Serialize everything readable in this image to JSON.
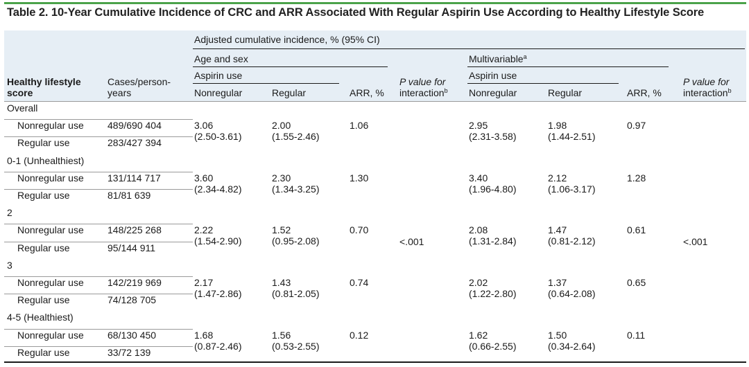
{
  "title": "Table 2. 10-Year Cumulative Incidence of CRC and ARR Associated With Regular Aspirin Use According to Healthy Lifestyle Score",
  "header": {
    "group": "Adjusted cumulative incidence, % (95% CI)",
    "age_sex": "Age and sex",
    "multivariable": "Multivariable",
    "multivariable_sup": "a",
    "aspirin_use": "Aspirin use",
    "healthy_lifestyle_1": "Healthy lifestyle",
    "healthy_lifestyle_2": "score",
    "cases_1": "Cases/person-",
    "cases_2": "years",
    "nonregular": "Nonregular",
    "regular": "Regular",
    "arr": "ARR, %",
    "p_value_1": "P value for",
    "p_value_2": "interaction",
    "p_value_sup": "b"
  },
  "groups": [
    {
      "label": "Overall",
      "rows": [
        {
          "label": "Nonregular use",
          "cases": "489/690 404"
        },
        {
          "label": "Regular use",
          "cases": "283/427 394"
        }
      ],
      "age_sex": {
        "nonreg": "3.06",
        "nonreg_ci": "(2.50-3.61)",
        "reg": "2.00",
        "reg_ci": "(1.55-2.46)",
        "arr": "1.06"
      },
      "multi": {
        "nonreg": "2.95",
        "nonreg_ci": "(2.31-3.58)",
        "reg": "1.98",
        "reg_ci": "(1.44-2.51)",
        "arr": "0.97"
      }
    },
    {
      "label": "0-1 (Unhealthiest)",
      "rows": [
        {
          "label": "Nonregular use",
          "cases": "131/114 717"
        },
        {
          "label": "Regular use",
          "cases": "81/81 639"
        }
      ],
      "age_sex": {
        "nonreg": "3.60",
        "nonreg_ci": "(2.34-4.82)",
        "reg": "2.30",
        "reg_ci": "(1.34-3.25)",
        "arr": "1.30"
      },
      "multi": {
        "nonreg": "3.40",
        "nonreg_ci": "(1.96-4.80)",
        "reg": "2.12",
        "reg_ci": "(1.06-3.17)",
        "arr": "1.28"
      }
    },
    {
      "label": "2",
      "rows": [
        {
          "label": "Nonregular use",
          "cases": "148/225 268"
        },
        {
          "label": "Regular use",
          "cases": "95/144 911"
        }
      ],
      "age_sex": {
        "nonreg": "2.22",
        "nonreg_ci": "(1.54-2.90)",
        "reg": "1.52",
        "reg_ci": "(0.95-2.08)",
        "arr": "0.70"
      },
      "multi": {
        "nonreg": "2.08",
        "nonreg_ci": "(1.31-2.84)",
        "reg": "1.47",
        "reg_ci": "(0.81-2.12)",
        "arr": "0.61"
      }
    },
    {
      "label": "3",
      "rows": [
        {
          "label": "Nonregular use",
          "cases": "142/219 969"
        },
        {
          "label": "Regular use",
          "cases": "74/128 705"
        }
      ],
      "age_sex": {
        "nonreg": "2.17",
        "nonreg_ci": "(1.47-2.86)",
        "reg": "1.43",
        "reg_ci": "(0.81-2.05)",
        "arr": "0.74"
      },
      "multi": {
        "nonreg": "2.02",
        "nonreg_ci": "(1.22-2.80)",
        "reg": "1.37",
        "reg_ci": "(0.64-2.08)",
        "arr": "0.65"
      }
    },
    {
      "label": "4-5 (Healthiest)",
      "rows": [
        {
          "label": "Nonregular use",
          "cases": "68/130 450"
        },
        {
          "label": "Regular use",
          "cases": "33/72 139"
        }
      ],
      "age_sex": {
        "nonreg": "1.68",
        "nonreg_ci": "(0.87-2.46)",
        "reg": "1.56",
        "reg_ci": "(0.53-2.55)",
        "arr": "0.12"
      },
      "multi": {
        "nonreg": "1.62",
        "nonreg_ci": "(0.66-2.55)",
        "reg": "1.50",
        "reg_ci": "(0.34-2.64)",
        "arr": "0.11"
      }
    }
  ],
  "p_interaction": {
    "age_sex": "<.001",
    "multi": "<.001"
  },
  "colors": {
    "accent_bar": "#4ba24a",
    "header_shade": "#e6eef5",
    "text": "#1a1a1a"
  }
}
